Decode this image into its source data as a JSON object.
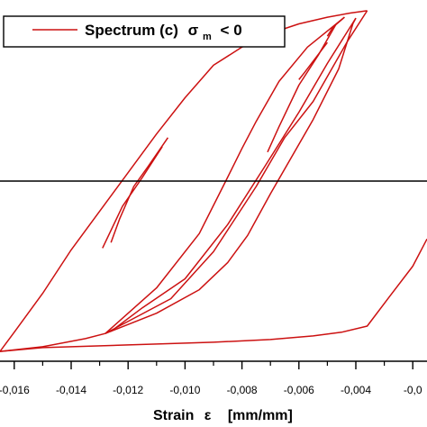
{
  "chart_data": {
    "type": "line",
    "xlabel_word": "Strain",
    "xlabel_symbol": "ε",
    "xlabel_unit": "[mm/mm]",
    "xlim": [
      -0.0165,
      -0.0015
    ],
    "ylim": [
      -1.0,
      1.0
    ],
    "hline_y": 0,
    "grid": false,
    "legend": {
      "placement": "top-left",
      "name_prefix": "Spectrum (c)",
      "sigma": "σ",
      "subscript": "m",
      "suffix": "< 0"
    },
    "x_ticks": [
      {
        "value": -0.016,
        "label": "-0,016"
      },
      {
        "value": -0.014,
        "label": "-0,014"
      },
      {
        "value": -0.012,
        "label": "-0,012"
      },
      {
        "value": -0.01,
        "label": "-0,010"
      },
      {
        "value": -0.008,
        "label": "-0,008"
      },
      {
        "value": -0.006,
        "label": "-0,006"
      },
      {
        "value": -0.004,
        "label": "-0,004"
      },
      {
        "value": -0.002,
        "label": "-0,0"
      }
    ],
    "series": [
      {
        "name": "Spectrum (c) σm < 0",
        "color": "#cc1111",
        "segments": [
          [
            [
              -0.0165,
              -0.941
            ],
            [
              -0.016,
              -0.835
            ],
            [
              -0.015,
              -0.62
            ],
            [
              -0.014,
              -0.38
            ],
            [
              -0.0125,
              -0.06
            ],
            [
              -0.011,
              0.26
            ],
            [
              -0.01,
              0.46
            ],
            [
              -0.009,
              0.64
            ],
            [
              -0.008,
              0.74
            ],
            [
              -0.007,
              0.816
            ],
            [
              -0.006,
              0.868
            ],
            [
              -0.005,
              0.905
            ],
            [
              -0.0042,
              0.928
            ],
            [
              -0.0036,
              0.941
            ]
          ],
          [
            [
              -0.0036,
              0.941
            ],
            [
              -0.0043,
              0.77
            ],
            [
              -0.0055,
              0.44
            ],
            [
              -0.0065,
              0.24
            ],
            [
              -0.0075,
              -0.03
            ],
            [
              -0.009,
              -0.39
            ],
            [
              -0.0105,
              -0.65
            ],
            [
              -0.0128,
              -0.842
            ]
          ],
          [
            [
              -0.0128,
              -0.842
            ],
            [
              -0.011,
              -0.73
            ],
            [
              -0.0095,
              -0.6
            ],
            [
              -0.0085,
              -0.45
            ],
            [
              -0.0078,
              -0.3
            ],
            [
              -0.007,
              -0.07
            ],
            [
              -0.0055,
              0.34
            ],
            [
              -0.0046,
              0.62
            ],
            [
              -0.0041,
              0.87
            ],
            [
              -0.004,
              0.9
            ]
          ],
          [
            [
              -0.004,
              0.9
            ],
            [
              -0.005,
              0.65
            ],
            [
              -0.006,
              0.38
            ],
            [
              -0.0072,
              0.08
            ],
            [
              -0.0085,
              -0.24
            ],
            [
              -0.01,
              -0.54
            ],
            [
              -0.0115,
              -0.7
            ],
            [
              -0.0126,
              -0.83
            ]
          ],
          [
            [
              -0.0128,
              -0.842
            ],
            [
              -0.011,
              -0.59
            ],
            [
              -0.0095,
              -0.29
            ],
            [
              -0.0086,
              -0.01
            ],
            [
              -0.008,
              0.18
            ],
            [
              -0.0075,
              0.33
            ],
            [
              -0.0067,
              0.55
            ],
            [
              -0.0057,
              0.74
            ],
            [
              -0.0044,
              0.905
            ]
          ],
          [
            [
              -0.0044,
              0.905
            ],
            [
              -0.0048,
              0.85
            ],
            [
              -0.005,
              0.8
            ]
          ],
          [
            [
              -0.0047,
              0.865
            ],
            [
              -0.0053,
              0.7
            ],
            [
              -0.006,
              0.53
            ],
            [
              -0.0067,
              0.3
            ],
            [
              -0.0071,
              0.16
            ]
          ],
          [
            [
              -0.005,
              0.765
            ],
            [
              -0.0058,
              0.6
            ],
            [
              -0.006,
              0.56
            ]
          ],
          [
            [
              -0.0108,
              0.19
            ],
            [
              -0.0115,
              0.02
            ],
            [
              -0.0122,
              -0.14
            ],
            [
              -0.0129,
              -0.37
            ]
          ],
          [
            [
              -0.0106,
              0.24
            ],
            [
              -0.0113,
              0.08
            ],
            [
              -0.0118,
              -0.03
            ],
            [
              -0.0123,
              -0.21
            ],
            [
              -0.0126,
              -0.34
            ]
          ],
          [
            [
              -0.0128,
              -0.842
            ],
            [
              -0.0135,
              -0.87
            ],
            [
              -0.015,
              -0.915
            ],
            [
              -0.0165,
              -0.941
            ]
          ],
          [
            [
              -0.0165,
              -0.941
            ],
            [
              -0.015,
              -0.92
            ],
            [
              -0.012,
              -0.905
            ],
            [
              -0.009,
              -0.89
            ],
            [
              -0.007,
              -0.875
            ],
            [
              -0.0055,
              -0.855
            ],
            [
              -0.0045,
              -0.835
            ],
            [
              -0.0036,
              -0.801
            ],
            [
              -0.0028,
              -0.635
            ],
            [
              -0.002,
              -0.47
            ],
            [
              -0.0015,
              -0.32
            ]
          ]
        ]
      }
    ]
  }
}
